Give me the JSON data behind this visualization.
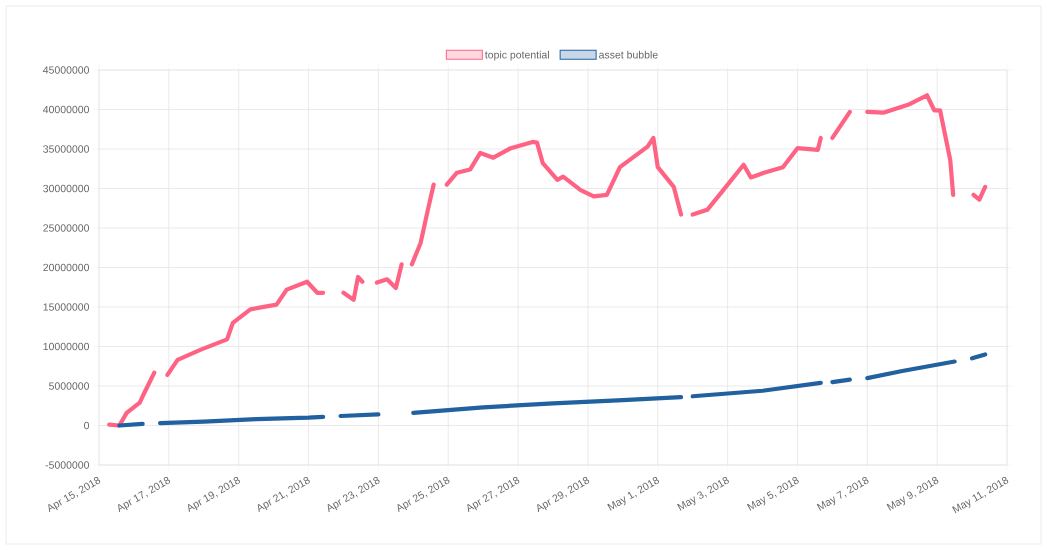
{
  "chart_data": {
    "type": "line",
    "legend": "top",
    "grid": true,
    "marker": "none",
    "line_style": "solid",
    "xlim": [
      "2018-04-15",
      "2018-05-11"
    ],
    "ylim": [
      -5000000,
      45000000
    ],
    "xticks": [
      {
        "value": "2018-04-15",
        "label": "Apr 15, 2018"
      },
      {
        "value": "2018-04-17",
        "label": "Apr 17, 2018"
      },
      {
        "value": "2018-04-19",
        "label": "Apr 19, 2018"
      },
      {
        "value": "2018-04-21",
        "label": "Apr 21, 2018"
      },
      {
        "value": "2018-04-23",
        "label": "Apr 23, 2018"
      },
      {
        "value": "2018-04-25",
        "label": "Apr 25, 2018"
      },
      {
        "value": "2018-04-27",
        "label": "Apr 27, 2018"
      },
      {
        "value": "2018-04-29",
        "label": "Apr 29, 2018"
      },
      {
        "value": "2018-05-01",
        "label": "May 1, 2018"
      },
      {
        "value": "2018-05-03",
        "label": "May 3, 2018"
      },
      {
        "value": "2018-05-05",
        "label": "May 5, 2018"
      },
      {
        "value": "2018-05-07",
        "label": "May 7, 2018"
      },
      {
        "value": "2018-05-09",
        "label": "May 9, 2018"
      },
      {
        "value": "2018-05-11",
        "label": "May 11, 2018"
      }
    ],
    "yticks": [
      -5000000,
      0,
      5000000,
      10000000,
      15000000,
      20000000,
      25000000,
      30000000,
      35000000,
      40000000,
      45000000
    ],
    "series": [
      {
        "name": "topic potential",
        "color": "#ff6384",
        "x": [
          "2018-04-15T07:00",
          "2018-04-15T14:00",
          "2018-04-15T19:00",
          "2018-04-16T04:00",
          "2018-04-16T06:00",
          "2018-04-16T14:00",
          "2018-04-16T18:00",
          "2018-04-16T23:00",
          "2018-04-17T06:00",
          "2018-04-17T22:00",
          "2018-04-18T16:00",
          "2018-04-18T20:00",
          "2018-04-19T08:00",
          "2018-04-20T02:00",
          "2018-04-20T09:00",
          "2018-04-20T23:00",
          "2018-04-21T06:00",
          "2018-04-21T10:00",
          "2018-04-21T17:00",
          "2018-04-22T00:00",
          "2018-04-22T07:00",
          "2018-04-22T10:00",
          "2018-04-22T13:00",
          "2018-04-22T18:00",
          "2018-04-22T23:00",
          "2018-04-23T06:00",
          "2018-04-23T12:00",
          "2018-04-23T16:00",
          "2018-04-23T20:00",
          "2018-04-23T23:00",
          "2018-04-24T05:00",
          "2018-04-24T10:00",
          "2018-04-24T14:00",
          "2018-04-24T18:00",
          "2018-04-24T23:00",
          "2018-04-25T06:00",
          "2018-04-25T15:00",
          "2018-04-25T22:00",
          "2018-04-26T07:00",
          "2018-04-26T19:00",
          "2018-04-27T10:00",
          "2018-04-27T13:00",
          "2018-04-27T17:00",
          "2018-04-28T03:00",
          "2018-04-28T07:00",
          "2018-04-28T19:00",
          "2018-04-29T04:00",
          "2018-04-29T13:00",
          "2018-04-29T22:00",
          "2018-04-30T17:00",
          "2018-04-30T21:00",
          "2018-05-01T00:00",
          "2018-05-01T11:00",
          "2018-05-01T16:00",
          "2018-05-01T19:00",
          "2018-05-02T00:00",
          "2018-05-02T10:00",
          "2018-05-02T21:00",
          "2018-05-03T11:00",
          "2018-05-03T16:00",
          "2018-05-04T01:00",
          "2018-05-04T14:00",
          "2018-05-05T00:00",
          "2018-05-05T14:00",
          "2018-05-05T16:00",
          "2018-05-05T20:00",
          "2018-05-06T00:00",
          "2018-05-06T12:00",
          "2018-05-06T18:00",
          "2018-05-07T00:00",
          "2018-05-07T11:00",
          "2018-05-08T04:00",
          "2018-05-08T17:00",
          "2018-05-08T22:00",
          "2018-05-09T02:00",
          "2018-05-09T09:00",
          "2018-05-09T11:00",
          "2018-05-09T18:00",
          "2018-05-10T01:00",
          "2018-05-10T05:00",
          "2018-05-10T09:00"
        ],
        "values": [
          100000,
          0,
          1600000,
          2900000,
          3700000,
          6700000,
          null,
          6400000,
          8300000,
          9600000,
          10900000,
          13000000,
          14700000,
          15300000,
          17200000,
          18200000,
          16800000,
          16800000,
          null,
          16800000,
          15900000,
          18800000,
          18200000,
          null,
          18100000,
          18500000,
          17400000,
          20400000,
          null,
          20400000,
          23100000,
          27300000,
          30500000,
          null,
          30500000,
          32000000,
          32400000,
          34500000,
          33900000,
          35100000,
          35900000,
          35800000,
          33200000,
          31100000,
          31500000,
          29800000,
          29000000,
          29200000,
          32700000,
          35300000,
          36400000,
          32700000,
          30200000,
          26700000,
          null,
          26700000,
          27300000,
          29800000,
          33000000,
          31400000,
          32000000,
          32700000,
          35100000,
          34900000,
          36400000,
          null,
          36400000,
          39700000,
          null,
          39700000,
          39600000,
          40600000,
          41800000,
          39900000,
          39900000,
          33600000,
          29200000,
          null,
          29200000,
          28600000,
          30200000
        ]
      },
      {
        "name": "asset bubble",
        "color": "#22619f",
        "x": [
          "2018-04-15T14:00",
          "2018-04-16T06:00",
          "2018-04-16T12:00",
          "2018-04-16T18:00",
          "2018-04-18T00:00",
          "2018-04-19T12:00",
          "2018-04-21T00:00",
          "2018-04-21T10:00",
          "2018-04-21T14:00",
          "2018-04-21T22:00",
          "2018-04-23T00:00",
          "2018-04-23T12:00",
          "2018-04-24T00:00",
          "2018-04-26T00:00",
          "2018-04-28T00:00",
          "2018-04-30T00:00",
          "2018-05-01T16:00",
          "2018-05-01T19:00",
          "2018-05-02T00:00",
          "2018-05-04T00:00",
          "2018-05-05T16:00",
          "2018-05-05T20:00",
          "2018-05-06T00:00",
          "2018-05-06T12:00",
          "2018-05-06T18:00",
          "2018-05-07T00:00",
          "2018-05-08T00:00",
          "2018-05-09T12:00",
          "2018-05-09T18:00",
          "2018-05-10T00:00",
          "2018-05-10T09:00"
        ],
        "values": [
          0,
          200000,
          null,
          300000,
          500000,
          800000,
          1000000,
          1100000,
          null,
          1200000,
          1400000,
          null,
          1600000,
          2300000,
          2800000,
          3200000,
          3600000,
          null,
          3700000,
          4400000,
          5400000,
          null,
          5500000,
          5800000,
          null,
          6000000,
          6900000,
          8100000,
          null,
          8500000,
          9000000
        ]
      }
    ]
  }
}
